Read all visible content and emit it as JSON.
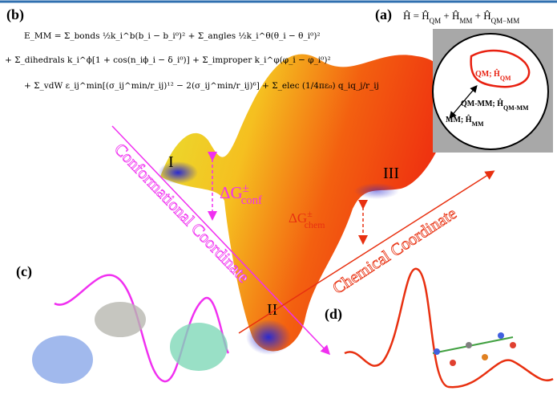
{
  "panels": {
    "a": "(a)",
    "b": "(b)",
    "c": "(c)",
    "d": "(d)"
  },
  "hamiltonian": {
    "parts": [
      {
        "text": "Ĥ = Ĥ",
        "sub": "QM"
      },
      {
        "text": " + Ĥ",
        "sub": "MM"
      },
      {
        "text": " + Ĥ",
        "sub": "QM−MM"
      }
    ]
  },
  "energy_equation": {
    "lines": [
      "E_MM = Σ_bonds ½k_i^b(b_i − b_i⁰)² + Σ_angles ½k_i^θ(θ_i − θ_i⁰)²",
      "+ Σ_dihedrals k_i^ϕ[1 + cos(n_iϕ_i − δ_i⁰)] + Σ_improper k_i^φ(φ_i − φ_i⁰)²",
      "+ Σ_vdW ε_ij^min[(σ_ij^min/r_ij)¹² − 2(σ_ij^min/r_ij)⁶] + Σ_elec (1/4πε₀) q_iq_j/r_ij"
    ]
  },
  "regions": {
    "qm": {
      "text": "QM; Ĥ",
      "sub": "QM"
    },
    "qm_mm": {
      "text": "QM-MM; Ĥ",
      "sub": "QM-MM"
    },
    "mm": {
      "text": "MM; Ĥ",
      "sub": "MM"
    }
  },
  "states": [
    "I",
    "II",
    "III"
  ],
  "barriers": {
    "conf": {
      "base": "ΔG",
      "sup": "±",
      "sub": "conf"
    },
    "chem": {
      "base": "ΔG",
      "sup": "±",
      "sub": "chem"
    }
  },
  "axes": {
    "conformational": "Conformational Coordinate",
    "chemical": "Chemical Coordinate"
  }
}
